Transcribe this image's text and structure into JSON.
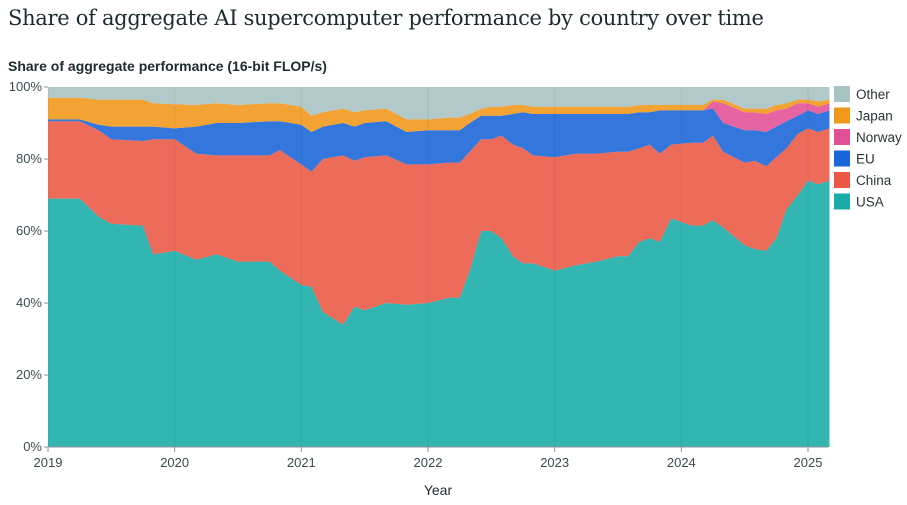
{
  "chart_data": {
    "type": "area",
    "stacked": true,
    "title": "Share of aggregate AI supercomputer performance by country over time",
    "ylabel": "Share of aggregate performance (16-bit FLOP/s)",
    "xlabel": "Year",
    "xlim": [
      2019,
      2025.17
    ],
    "ylim": [
      0,
      100
    ],
    "x_ticks": [
      "2019",
      "2020",
      "2021",
      "2022",
      "2023",
      "2024",
      "2025"
    ],
    "y_ticks": [
      "0%",
      "20%",
      "40%",
      "60%",
      "80%",
      "100%"
    ],
    "grid": "vertical",
    "legend_placement": "right",
    "x": [
      2019.0,
      2019.25,
      2019.4,
      2019.5,
      2019.75,
      2019.83,
      2020.0,
      2020.17,
      2020.33,
      2020.5,
      2020.75,
      2020.83,
      2021.0,
      2021.08,
      2021.17,
      2021.33,
      2021.42,
      2021.5,
      2021.67,
      2021.83,
      2022.0,
      2022.17,
      2022.25,
      2022.33,
      2022.42,
      2022.5,
      2022.58,
      2022.67,
      2022.75,
      2022.83,
      2023.0,
      2023.17,
      2023.33,
      2023.5,
      2023.58,
      2023.67,
      2023.75,
      2023.83,
      2023.92,
      2024.08,
      2024.17,
      2024.25,
      2024.33,
      2024.5,
      2024.58,
      2024.67,
      2024.75,
      2024.83,
      2024.92,
      2025.0,
      2025.08,
      2025.17
    ],
    "series": [
      {
        "name": "USA",
        "color": "#00a29f",
        "values": [
          69,
          69,
          64,
          62,
          61.5,
          53.5,
          54.5,
          52,
          53.5,
          51.5,
          51.5,
          49,
          45,
          44.5,
          37.5,
          34,
          39,
          38,
          40,
          39.5,
          40,
          41.5,
          41.5,
          49,
          60,
          60,
          58,
          53,
          51,
          51,
          49,
          50.5,
          51.5,
          53,
          53,
          57,
          58,
          57,
          63.5,
          61.5,
          61.5,
          63,
          61,
          56,
          55,
          54.5,
          58,
          66,
          70,
          74,
          73,
          74
        ]
      },
      {
        "name": "China",
        "color": "#e9462f",
        "values": [
          21.5,
          21.5,
          24,
          23.5,
          23.5,
          32,
          31,
          29.5,
          27.5,
          29.5,
          29.5,
          33.5,
          33.5,
          32,
          42.5,
          47,
          40.5,
          42.5,
          41,
          39,
          38.5,
          37.5,
          37.5,
          33,
          25.5,
          25.5,
          28.5,
          31,
          32,
          30,
          31.5,
          31,
          30,
          29,
          29,
          26,
          26,
          24.5,
          20.5,
          23,
          23,
          23.5,
          21,
          23,
          24.5,
          23.5,
          22.5,
          17,
          17,
          14.5,
          14.5,
          14.5
        ]
      },
      {
        "name": "EU",
        "color": "#0055d4",
        "values": [
          0.5,
          0.5,
          1.5,
          3.5,
          4,
          3.5,
          3,
          7.5,
          9,
          9,
          9.5,
          8,
          11,
          11,
          9,
          9,
          9.5,
          9.5,
          9.5,
          9,
          9.5,
          9,
          9,
          8,
          6.5,
          6.5,
          5.5,
          8.5,
          10,
          11.5,
          12,
          11,
          11,
          10.5,
          10.5,
          10,
          9,
          12,
          9.5,
          9,
          9,
          7.5,
          8,
          9,
          8.5,
          9.5,
          8.5,
          7.5,
          5,
          5,
          5,
          5
        ]
      },
      {
        "name": "Norway",
        "color": "#df3d8a",
        "values": [
          0,
          0,
          0,
          0,
          0,
          0,
          0,
          0,
          0,
          0,
          0,
          0,
          0,
          0,
          0,
          0,
          0,
          0,
          0,
          0,
          0,
          0,
          0,
          0,
          0,
          0,
          0,
          0,
          0,
          0,
          0,
          0,
          0,
          0,
          0,
          0,
          0,
          0,
          0,
          0,
          0,
          2,
          5.5,
          5,
          5,
          5,
          4.5,
          3.5,
          3.5,
          2,
          2,
          2
        ]
      },
      {
        "name": "Japan",
        "color": "#ef8c00",
        "values": [
          6,
          6,
          7,
          7.5,
          7.5,
          6.5,
          6.7,
          6,
          5.5,
          5,
          5,
          5,
          5,
          4.5,
          4,
          4,
          4,
          3.5,
          3.5,
          3.5,
          3,
          3.5,
          3.5,
          2.5,
          2,
          2.5,
          2.5,
          2.5,
          2,
          2,
          2,
          2,
          2,
          2,
          2,
          2,
          2,
          1.5,
          1.5,
          1.5,
          1.5,
          0.5,
          1,
          1,
          1,
          1.5,
          1.5,
          1.5,
          1,
          1,
          1.5,
          1
        ]
      },
      {
        "name": "Other",
        "color": "#9dbcbc",
        "values": [
          3,
          3,
          3.5,
          3.5,
          3.5,
          4.5,
          4.8,
          5,
          4.5,
          5,
          4.5,
          4.5,
          5.5,
          8,
          7,
          6,
          7,
          6.5,
          6,
          9,
          9,
          8.5,
          8.5,
          7.5,
          6,
          5.5,
          5.5,
          5,
          5,
          5.5,
          5.5,
          5.5,
          5.5,
          5.5,
          5.5,
          5,
          5,
          5,
          5,
          5,
          5,
          3.5,
          3.5,
          6,
          6,
          6,
          5,
          4.5,
          3.5,
          3.5,
          4,
          3.5
        ]
      }
    ],
    "legend_order": [
      "Other",
      "Japan",
      "Norway",
      "EU",
      "China",
      "USA"
    ]
  }
}
